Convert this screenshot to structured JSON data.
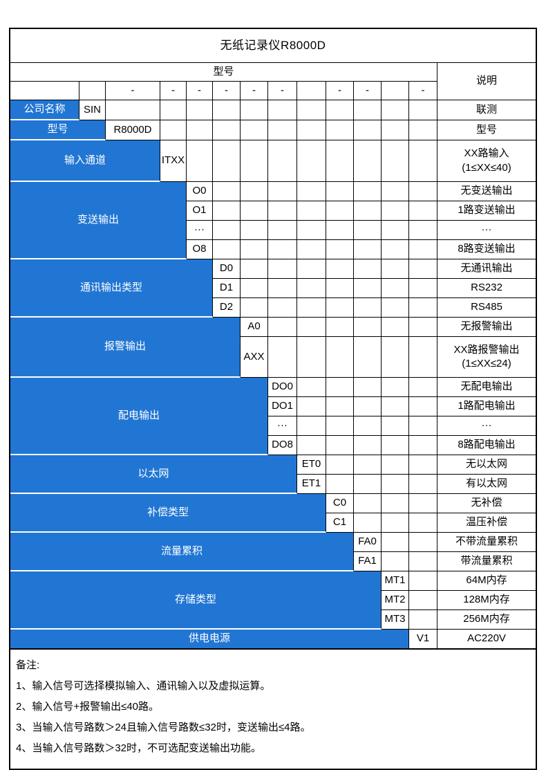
{
  "page": {
    "background": "#ffffff"
  },
  "colors": {
    "accent_blue": "#2176d3",
    "border": "#000000",
    "category_text": "#ffffff",
    "body_text": "#000000"
  },
  "table": {
    "title": "无纸记录仪R8000D",
    "model_label": "型号",
    "desc_label": "说明",
    "dash_row": [
      "",
      "",
      "-",
      "-",
      "-",
      "-",
      "-",
      "-",
      "",
      "-",
      "-",
      "",
      "-"
    ],
    "blocks": [
      {
        "category": "公司名称",
        "code_col": 2,
        "options": [
          {
            "code": "SIN",
            "desc": "联测"
          }
        ]
      },
      {
        "category": "型号",
        "code_col": 3,
        "options": [
          {
            "code": "R8000D",
            "desc": "型号"
          }
        ]
      },
      {
        "category": "输入通道",
        "code_col": 4,
        "options": [
          {
            "code": "ITXX",
            "desc": "XX路输入\n(1≤XX≤40)",
            "tall": true
          }
        ]
      },
      {
        "category": "变送输出",
        "code_col": 5,
        "options": [
          {
            "code": "O0",
            "desc": "无变送输出"
          },
          {
            "code": "O1",
            "desc": "1路变送输出"
          },
          {
            "code": "···",
            "desc": "···"
          },
          {
            "code": "O8",
            "desc": "8路变送输出"
          }
        ]
      },
      {
        "category": "通讯输出类型",
        "code_col": 6,
        "options": [
          {
            "code": "D0",
            "desc": "无通讯输出"
          },
          {
            "code": "D1",
            "desc": "RS232"
          },
          {
            "code": "D2",
            "desc": "RS485"
          }
        ]
      },
      {
        "category": "报警输出",
        "code_col": 7,
        "options": [
          {
            "code": "A0",
            "desc": "无报警输出"
          },
          {
            "code": "AXX",
            "desc": "XX路报警输出\n(1≤XX≤24)",
            "tall": true
          }
        ]
      },
      {
        "category": "配电输出",
        "code_col": 8,
        "options": [
          {
            "code": "DO0",
            "desc": "无配电输出"
          },
          {
            "code": "DO1",
            "desc": "1路配电输出"
          },
          {
            "code": "···",
            "desc": "···"
          },
          {
            "code": "DO8",
            "desc": "8路配电输出"
          }
        ]
      },
      {
        "category": "以太网",
        "code_col": 9,
        "options": [
          {
            "code": "ET0",
            "desc": "无以太网"
          },
          {
            "code": "ET1",
            "desc": "有以太网"
          }
        ]
      },
      {
        "category": "补偿类型",
        "code_col": 10,
        "options": [
          {
            "code": "C0",
            "desc": "无补偿"
          },
          {
            "code": "C1",
            "desc": "温压补偿"
          }
        ]
      },
      {
        "category": "流量累积",
        "code_col": 11,
        "options": [
          {
            "code": "FA0",
            "desc": "不带流量累积"
          },
          {
            "code": "FA1",
            "desc": "带流量累积"
          }
        ]
      },
      {
        "category": "存储类型",
        "code_col": 12,
        "options": [
          {
            "code": "MT1",
            "desc": "64M内存"
          },
          {
            "code": "MT2",
            "desc": "128M内存"
          },
          {
            "code": "MT3",
            "desc": "256M内存"
          }
        ]
      },
      {
        "category": "供电电源",
        "code_col": 13,
        "options": [
          {
            "code": "V1",
            "desc": "AC220V"
          }
        ]
      }
    ]
  },
  "notes": {
    "label": "备注:",
    "items": [
      "1、输入信号可选择模拟输入、通讯输入以及虚拟运算。",
      "2、输入信号+报警输出≤40路。",
      "3、当输入信号路数＞24且输入信号路数≤32时，变送输出≤4路。",
      "4、当输入信号路数＞32时，不可选配变送输出功能。"
    ]
  }
}
